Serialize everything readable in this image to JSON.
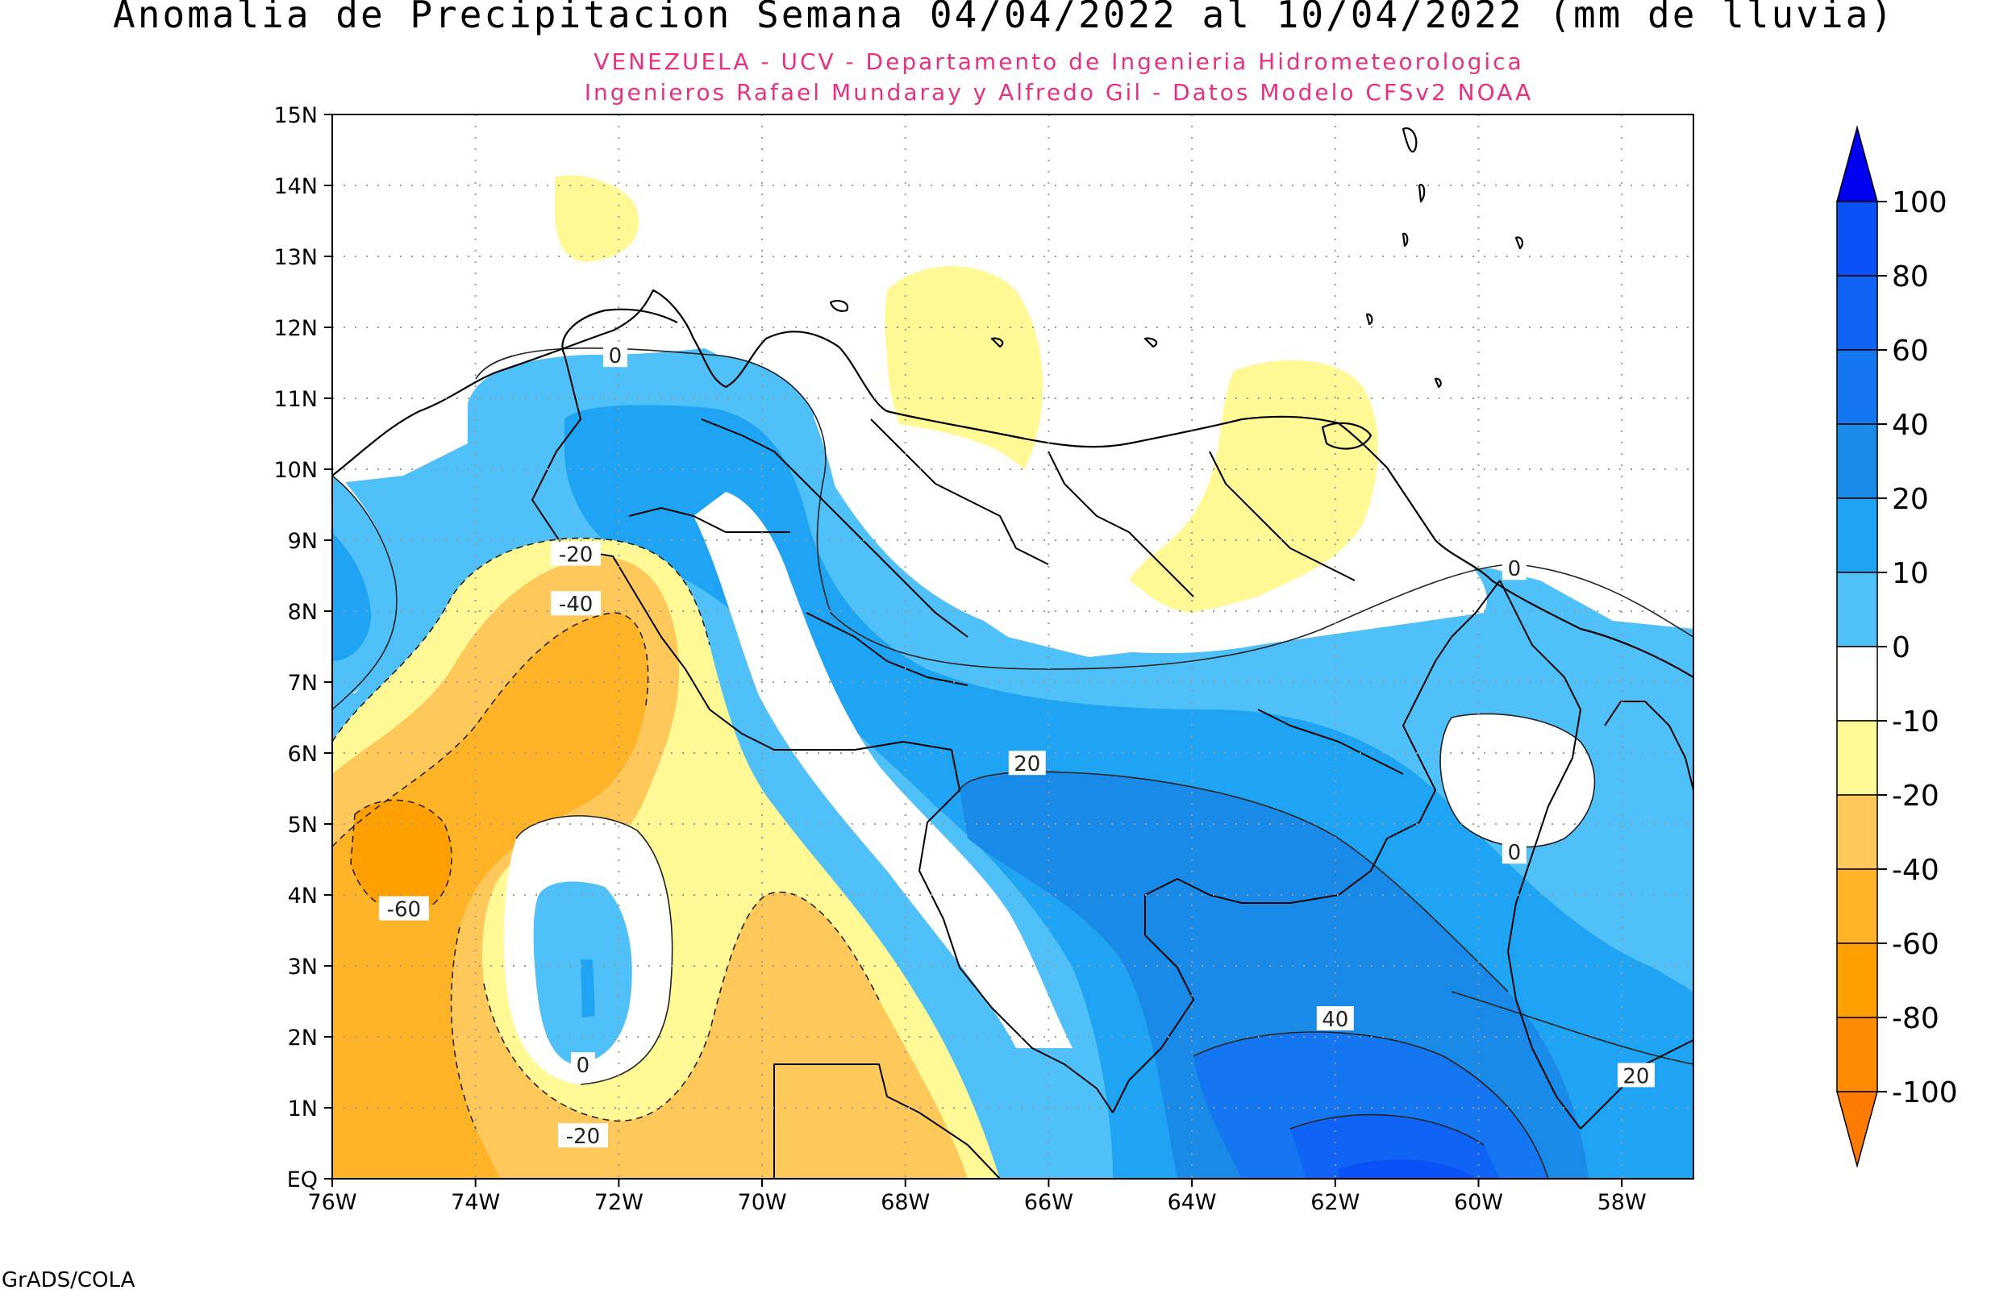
{
  "title": "Anomalia de Precipitacion Semana 04/04/2022 al 10/04/2022 (mm de lluvia)",
  "subtitle_line1": "VENEZUELA - UCV - Departamento de Ingenieria Hidrometeorologica",
  "subtitle_line2": "Ingenieros Rafael Mundaray y Alfredo Gil - Datos Modelo CFSv2 NOAA",
  "credit": "GrADS/COLA",
  "map": {
    "lon_range": [
      -76,
      -57
    ],
    "lat_range": [
      0,
      15
    ],
    "lat_ticks": [
      {
        "value": 15,
        "label": "15N"
      },
      {
        "value": 14,
        "label": "14N"
      },
      {
        "value": 13,
        "label": "13N"
      },
      {
        "value": 12,
        "label": "12N"
      },
      {
        "value": 11,
        "label": "11N"
      },
      {
        "value": 10,
        "label": "10N"
      },
      {
        "value": 9,
        "label": "9N"
      },
      {
        "value": 8,
        "label": "8N"
      },
      {
        "value": 7,
        "label": "7N"
      },
      {
        "value": 6,
        "label": "6N"
      },
      {
        "value": 5,
        "label": "5N"
      },
      {
        "value": 4,
        "label": "4N"
      },
      {
        "value": 3,
        "label": "3N"
      },
      {
        "value": 2,
        "label": "2N"
      },
      {
        "value": 1,
        "label": "1N"
      },
      {
        "value": 0,
        "label": "EQ"
      }
    ],
    "lon_ticks": [
      {
        "value": -76,
        "label": "76W"
      },
      {
        "value": -74,
        "label": "74W"
      },
      {
        "value": -72,
        "label": "72W"
      },
      {
        "value": -70,
        "label": "70W"
      },
      {
        "value": -68,
        "label": "68W"
      },
      {
        "value": -66,
        "label": "66W"
      },
      {
        "value": -64,
        "label": "64W"
      },
      {
        "value": -62,
        "label": "62W"
      },
      {
        "value": -60,
        "label": "60W"
      },
      {
        "value": -58,
        "label": "58W"
      }
    ],
    "contour_labels": [
      {
        "text": "0",
        "lon": -72.05,
        "lat": 11.6
      },
      {
        "text": "-20",
        "lon": -72.6,
        "lat": 8.8
      },
      {
        "text": "-40",
        "lon": -72.6,
        "lat": 8.1
      },
      {
        "text": "-60",
        "lon": -75.0,
        "lat": 3.8
      },
      {
        "text": "0",
        "lon": -72.5,
        "lat": 1.6
      },
      {
        "text": "-20",
        "lon": -72.5,
        "lat": 0.6
      },
      {
        "text": "20",
        "lon": -66.3,
        "lat": 5.85
      },
      {
        "text": "40",
        "lon": -62.0,
        "lat": 2.25
      },
      {
        "text": "0",
        "lon": -59.5,
        "lat": 8.6
      },
      {
        "text": "0",
        "lon": -59.5,
        "lat": 4.6
      },
      {
        "text": "20",
        "lon": -57.8,
        "lat": 1.45
      }
    ]
  },
  "colorbar": {
    "top_color": "#0000f0",
    "bottom_color": "#ff7a00",
    "levels": [
      "100",
      "80",
      "60",
      "40",
      "20",
      "10",
      "0",
      "-10",
      "-20",
      "-40",
      "-60",
      "-80",
      "-100"
    ],
    "colors": [
      "#0a52f5",
      "#0f64f5",
      "#1476f0",
      "#198ae8",
      "#1ea4f2",
      "#50c0f8",
      "#ffffff",
      "#fffa96",
      "#ffc85a",
      "#ffb428",
      "#ffa000",
      "#ff8c00"
    ]
  }
}
